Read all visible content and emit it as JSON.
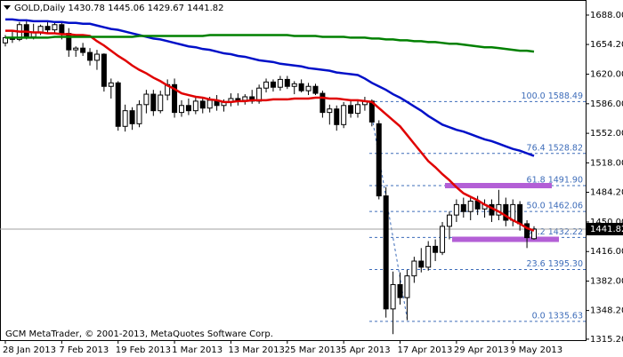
{
  "chart_data": {
    "type": "candlestick",
    "title": "GOLD,Daily  1430.78 1445.06 1429.67 1441.82",
    "footer": "GCM MetaTrader, © 2001-2013, MetaQuotes Software Corp.",
    "categories": [
      "28 Jan 2013",
      null,
      null,
      null,
      null,
      null,
      null,
      null,
      "7 Feb 2013",
      null,
      null,
      null,
      null,
      null,
      null,
      null,
      "19 Feb 2013",
      null,
      null,
      null,
      null,
      null,
      null,
      null,
      "1 Mar 2013",
      null,
      null,
      null,
      null,
      null,
      null,
      null,
      "13 Mar 2013",
      null,
      null,
      null,
      null,
      null,
      null,
      null,
      "25 Mar 2013",
      null,
      null,
      null,
      null,
      null,
      null,
      null,
      "5 Apr 2013",
      null,
      null,
      null,
      null,
      null,
      null,
      null,
      "17 Apr 2013",
      null,
      null,
      null,
      null,
      null,
      null,
      null,
      "29 Apr 2013",
      null,
      null,
      null,
      null,
      null,
      null,
      null,
      "9 May 2013",
      null,
      null,
      null
    ],
    "open": [
      1656,
      1662,
      1660,
      1677,
      1663,
      1668,
      1675,
      1671,
      1677,
      1667,
      1648,
      1650,
      1645,
      1636,
      1643,
      1606,
      1610,
      1560,
      1578,
      1563,
      1585,
      1597,
      1578,
      1596,
      1608,
      1576,
      1584,
      1578,
      1589,
      1581,
      1590,
      1584,
      1588,
      1592,
      1590,
      1594,
      1589,
      1604,
      1611,
      1605,
      1614,
      1606,
      1609,
      1601,
      1606,
      1598,
      1576,
      1580,
      1562,
      1584,
      1575,
      1585,
      1589,
      1563,
      1480,
      1350,
      1378,
      1363,
      1388,
      1405,
      1398,
      1422,
      1415,
      1445,
      1458,
      1470,
      1462,
      1474,
      1465,
      1470,
      1458,
      1470,
      1452,
      1470,
      1448,
      1430.78
    ],
    "high": [
      1665,
      1670,
      1680,
      1683,
      1678,
      1677,
      1681,
      1680,
      1680,
      1673,
      1652,
      1656,
      1650,
      1648,
      1644,
      1615,
      1612,
      1585,
      1582,
      1590,
      1602,
      1602,
      1601,
      1614,
      1615,
      1590,
      1592,
      1594,
      1592,
      1594,
      1596,
      1591,
      1598,
      1598,
      1597,
      1602,
      1608,
      1615,
      1614,
      1618,
      1618,
      1612,
      1614,
      1610,
      1609,
      1601,
      1585,
      1584,
      1588,
      1590,
      1590,
      1594,
      1591,
      1567,
      1490,
      1393,
      1392,
      1395,
      1410,
      1420,
      1428,
      1430,
      1450,
      1462,
      1476,
      1478,
      1478,
      1480,
      1476,
      1476,
      1487,
      1478,
      1476,
      1474,
      1452,
      1445.06
    ],
    "low": [
      1652,
      1656,
      1658,
      1660,
      1660,
      1665,
      1668,
      1666,
      1660,
      1640,
      1640,
      1641,
      1630,
      1625,
      1600,
      1592,
      1555,
      1554,
      1556,
      1559,
      1575,
      1572,
      1575,
      1590,
      1570,
      1571,
      1573,
      1574,
      1575,
      1576,
      1578,
      1577,
      1583,
      1584,
      1585,
      1586,
      1586,
      1599,
      1600,
      1601,
      1603,
      1597,
      1599,
      1596,
      1596,
      1570,
      1562,
      1555,
      1558,
      1570,
      1570,
      1578,
      1560,
      1476,
      1340,
      1321,
      1355,
      1337,
      1380,
      1392,
      1394,
      1405,
      1412,
      1430,
      1450,
      1455,
      1452,
      1458,
      1455,
      1450,
      1452,
      1445,
      1445,
      1440,
      1420,
      1429.67
    ],
    "close": [
      1662,
      1660,
      1677,
      1663,
      1668,
      1675,
      1671,
      1677,
      1667,
      1648,
      1650,
      1645,
      1636,
      1643,
      1606,
      1610,
      1560,
      1578,
      1563,
      1585,
      1597,
      1578,
      1596,
      1608,
      1576,
      1584,
      1578,
      1589,
      1581,
      1590,
      1584,
      1588,
      1592,
      1590,
      1594,
      1589,
      1604,
      1611,
      1605,
      1614,
      1606,
      1609,
      1601,
      1606,
      1598,
      1576,
      1580,
      1562,
      1584,
      1575,
      1585,
      1589,
      1565,
      1480,
      1350,
      1378,
      1363,
      1388,
      1405,
      1398,
      1422,
      1415,
      1445,
      1458,
      1470,
      1462,
      1474,
      1465,
      1470,
      1458,
      1470,
      1452,
      1470,
      1448,
      1432,
      1441.82
    ],
    "series": [
      {
        "color": "#e00000",
        "values": [
          1670,
          1670,
          1669,
          1669,
          1668,
          1668,
          1667,
          1667,
          1666,
          1666,
          1665,
          1665,
          1664,
          1658,
          1653,
          1647,
          1641,
          1636,
          1630,
          1625,
          1621,
          1616,
          1612,
          1607,
          1603,
          1598,
          1596,
          1594,
          1593,
          1591,
          1590,
          1588,
          1588,
          1589,
          1589,
          1590,
          1590,
          1590,
          1591,
          1591,
          1591,
          1592,
          1592,
          1592,
          1593,
          1593,
          1592,
          1592,
          1591,
          1590,
          1590,
          1589,
          1588,
          1581,
          1574,
          1567,
          1560,
          1550,
          1540,
          1530,
          1520,
          1513,
          1505,
          1498,
          1490,
          1483,
          1479,
          1475,
          1470,
          1466,
          1462,
          1457,
          1452,
          1448,
          1443,
          1440
        ]
      },
      {
        "color": "#0010c8",
        "values": [
          1683,
          1683,
          1682,
          1682,
          1681,
          1681,
          1681,
          1680,
          1680,
          1679,
          1679,
          1678,
          1678,
          1676,
          1674,
          1672,
          1671,
          1669,
          1667,
          1665,
          1663,
          1661,
          1660,
          1658,
          1656,
          1654,
          1652,
          1651,
          1649,
          1648,
          1646,
          1644,
          1643,
          1641,
          1640,
          1638,
          1636,
          1635,
          1634,
          1632,
          1631,
          1630,
          1629,
          1627,
          1626,
          1625,
          1624,
          1622,
          1621,
          1620,
          1619,
          1615,
          1610,
          1606,
          1602,
          1597,
          1593,
          1588,
          1583,
          1578,
          1572,
          1567,
          1562,
          1559,
          1556,
          1554,
          1551,
          1548,
          1545,
          1543,
          1540,
          1537,
          1534,
          1532,
          1529,
          1526
        ]
      },
      {
        "color": "#008000",
        "values": [
          1662,
          1662,
          1662,
          1662,
          1662,
          1662,
          1662,
          1663,
          1663,
          1663,
          1663,
          1663,
          1663,
          1663,
          1663,
          1663,
          1663,
          1663,
          1663,
          1664,
          1664,
          1664,
          1664,
          1664,
          1664,
          1664,
          1664,
          1664,
          1664,
          1665,
          1665,
          1665,
          1665,
          1665,
          1665,
          1665,
          1665,
          1665,
          1665,
          1665,
          1665,
          1664,
          1664,
          1664,
          1664,
          1663,
          1663,
          1663,
          1663,
          1662,
          1662,
          1662,
          1661,
          1661,
          1660,
          1660,
          1659,
          1659,
          1658,
          1658,
          1657,
          1657,
          1656,
          1655,
          1655,
          1654,
          1653,
          1652,
          1651,
          1651,
          1650,
          1649,
          1648,
          1647,
          1647,
          1646
        ]
      }
    ],
    "fib_levels": [
      {
        "value": 1588.49,
        "label": "100.0 1588.49"
      },
      {
        "value": 1528.82,
        "label": "76.4 1528.82"
      },
      {
        "value": 1491.9,
        "label": "61.8 1491.90"
      },
      {
        "value": 1462.06,
        "label": "50.0 1462.06"
      },
      {
        "value": 1432.22,
        "label": "38.2 1432.22"
      },
      {
        "value": 1395.3,
        "label": "23.6 1395.30"
      },
      {
        "value": 1335.63,
        "label": "0.0 1335.63"
      }
    ],
    "zones": [
      {
        "value": 1491.9,
        "color": "#b35fd6"
      },
      {
        "value": 1430,
        "color": "#b35fd6"
      }
    ],
    "last_price": 1441.82,
    "ylim": [
      1314.1,
      1703.3
    ],
    "yticks": [
      {
        "value": 1688,
        "label": "1688.00"
      },
      {
        "value": 1654.2,
        "label": "1654.20"
      },
      {
        "value": 1620,
        "label": "1620.00"
      },
      {
        "value": 1586,
        "label": "1586.00"
      },
      {
        "value": 1552,
        "label": "1552.00"
      },
      {
        "value": 1518,
        "label": "1518.00"
      },
      {
        "value": 1484.2,
        "label": "1484.20"
      },
      {
        "value": 1450,
        "label": "1450.00"
      },
      {
        "value": 1416,
        "label": "1416.00"
      },
      {
        "value": 1382,
        "label": "1382.00"
      },
      {
        "value": 1348.2,
        "label": "1348.20"
      },
      {
        "value": 1315.2,
        "label": "1315.20"
      }
    ]
  }
}
